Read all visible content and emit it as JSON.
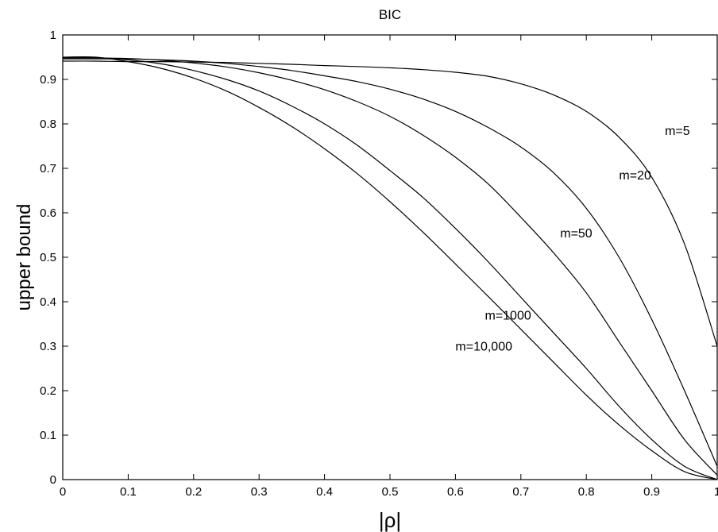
{
  "chart_data": {
    "type": "line",
    "title": "BIC",
    "xlabel": "|ρ|",
    "ylabel": "upper  bound",
    "xlim": [
      0,
      1
    ],
    "ylim": [
      0,
      1
    ],
    "grid": false,
    "x_ticks": [
      "0",
      "0.1",
      "0.2",
      "0.3",
      "0.4",
      "0.5",
      "0.6",
      "0.7",
      "0.8",
      "0.9",
      "1"
    ],
    "y_ticks": [
      "0",
      "0.1",
      "0.2",
      "0.3",
      "0.4",
      "0.5",
      "0.6",
      "0.7",
      "0.8",
      "0.9",
      "1"
    ],
    "x": [
      0,
      0.05,
      0.1,
      0.15,
      0.2,
      0.25,
      0.3,
      0.35,
      0.4,
      0.45,
      0.5,
      0.55,
      0.6,
      0.65,
      0.7,
      0.75,
      0.8,
      0.85,
      0.9,
      0.95,
      1.0
    ],
    "series": [
      {
        "values": [
          0.941,
          0.941,
          0.94,
          0.94,
          0.939,
          0.938,
          0.936,
          0.934,
          0.931,
          0.929,
          0.926,
          0.922,
          0.916,
          0.907,
          0.89,
          0.865,
          0.828,
          0.77,
          0.68,
          0.53,
          0.3
        ]
      },
      {
        "values": [
          0.946,
          0.946,
          0.946,
          0.944,
          0.941,
          0.936,
          0.929,
          0.92,
          0.908,
          0.895,
          0.878,
          0.856,
          0.828,
          0.792,
          0.748,
          0.69,
          0.61,
          0.5,
          0.36,
          0.2,
          0.03
        ]
      },
      {
        "values": [
          0.948,
          0.948,
          0.947,
          0.943,
          0.937,
          0.928,
          0.915,
          0.898,
          0.877,
          0.85,
          0.817,
          0.775,
          0.725,
          0.665,
          0.59,
          0.51,
          0.42,
          0.31,
          0.2,
          0.09,
          0.01
        ]
      },
      {
        "values": [
          0.949,
          0.949,
          0.944,
          0.935,
          0.92,
          0.9,
          0.874,
          0.84,
          0.8,
          0.752,
          0.695,
          0.635,
          0.565,
          0.49,
          0.41,
          0.33,
          0.25,
          0.165,
          0.09,
          0.03,
          0.0
        ]
      },
      {
        "values": [
          0.95,
          0.95,
          0.94,
          0.925,
          0.903,
          0.874,
          0.837,
          0.794,
          0.744,
          0.688,
          0.625,
          0.557,
          0.485,
          0.412,
          0.338,
          0.264,
          0.19,
          0.123,
          0.065,
          0.018,
          0.0
        ]
      }
    ],
    "annotations": [
      {
        "text": "m=5",
        "x": 0.92,
        "y": 0.775
      },
      {
        "text": "m=20",
        "x": 0.85,
        "y": 0.675
      },
      {
        "text": "m=50",
        "x": 0.76,
        "y": 0.545
      },
      {
        "text": "m=1000",
        "x": 0.645,
        "y": 0.36
      },
      {
        "text": "m=10,000",
        "x": 0.6,
        "y": 0.29
      }
    ]
  }
}
